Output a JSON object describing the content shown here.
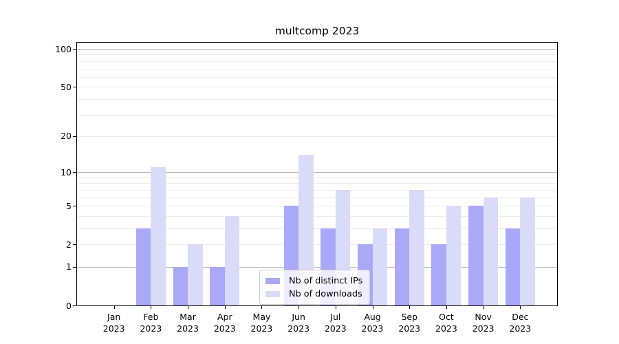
{
  "chart_data": {
    "type": "bar",
    "title": "multcomp 2023",
    "categories": [
      "Jan",
      "Feb",
      "Mar",
      "Apr",
      "May",
      "Jun",
      "Jul",
      "Aug",
      "Sep",
      "Oct",
      "Nov",
      "Dec"
    ],
    "x_sublabel": "2023",
    "series": [
      {
        "name": "Nb of distinct IPs",
        "color": "#a9a9f7",
        "values": [
          0,
          3,
          1,
          1,
          0,
          5,
          3,
          2,
          3,
          2,
          5,
          3
        ]
      },
      {
        "name": "Nb of downloads",
        "color": "#dadaf9",
        "values": [
          0,
          11,
          2,
          4,
          0,
          14,
          7,
          3,
          7,
          5,
          6,
          6
        ]
      }
    ],
    "y_ticks": [
      0,
      1,
      2,
      5,
      10,
      20,
      50,
      100
    ],
    "grid_minor": [
      2,
      3,
      4,
      5,
      6,
      7,
      8,
      9,
      20,
      30,
      40,
      50,
      60,
      70,
      80,
      90
    ],
    "grid_major": [
      1,
      10,
      100
    ],
    "ylim": [
      0,
      112
    ],
    "scale": "log1p",
    "xlabel": "",
    "ylabel": "",
    "legend_position": "lower-center",
    "colors": {
      "grid_minor": "#ececec",
      "grid_major": "#b4b4b4",
      "spine": "#000000",
      "legend_border": "#cccccc",
      "text": "#000000",
      "background": "#ffffff"
    }
  }
}
